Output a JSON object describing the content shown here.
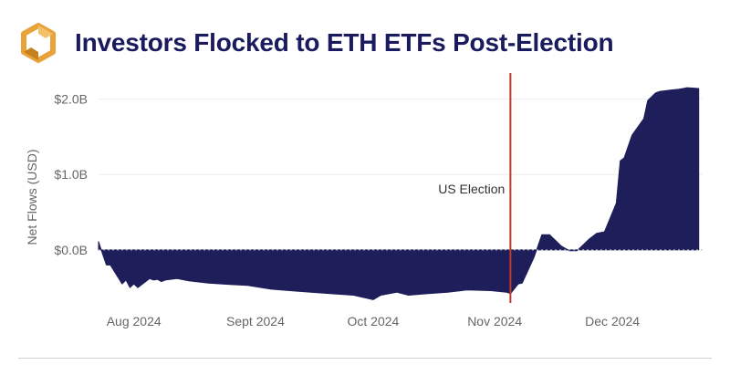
{
  "header": {
    "title": "Investors Flocked to ETH ETFs Post-Election",
    "logo_icon": "gold-hexagon-logo-icon",
    "title_color": "#1a1a5e"
  },
  "colors": {
    "area_fill": "#1e1e5a",
    "event_line": "#c0392b",
    "zero_line": "#bbbbbb",
    "grid": "#eeeeee",
    "tick_text": "#666666",
    "logo_gold": "#e8a23a"
  },
  "chart_data": {
    "type": "area",
    "title": "Investors Flocked to ETH ETFs Post-Election",
    "xlabel": "",
    "ylabel": "Net Flows  (USD)",
    "unit": "B USD",
    "xlim": [
      "2024-07-23",
      "2024-12-24"
    ],
    "ylim": [
      -0.8,
      2.2
    ],
    "y_ticks": [
      {
        "value": 0,
        "label": "$0.0B"
      },
      {
        "value": 1,
        "label": "$1.0B"
      },
      {
        "value": 2,
        "label": "$2.0B"
      }
    ],
    "x_ticks": [
      {
        "date": "2024-08-01",
        "label": "Aug 2024"
      },
      {
        "date": "2024-09-01",
        "label": "Sept 2024"
      },
      {
        "date": "2024-10-01",
        "label": "Oct 2024"
      },
      {
        "date": "2024-11-01",
        "label": "Nov 2024"
      },
      {
        "date": "2024-12-01",
        "label": "Dec 2024"
      }
    ],
    "grid": true,
    "legend": false,
    "annotations": [
      {
        "date": "2024-11-05",
        "label": "US Election",
        "type": "vertical-line"
      }
    ],
    "series": [
      {
        "x": [
          "2024-07-23",
          "2024-07-24",
          "2024-07-25",
          "2024-07-26",
          "2024-07-29",
          "2024-07-30",
          "2024-07-31",
          "2024-08-01",
          "2024-08-02",
          "2024-08-05",
          "2024-08-06",
          "2024-08-07",
          "2024-08-08",
          "2024-08-09",
          "2024-08-12",
          "2024-08-15",
          "2024-08-20",
          "2024-08-26",
          "2024-08-30",
          "2024-09-05",
          "2024-09-12",
          "2024-09-20",
          "2024-09-26",
          "2024-10-01",
          "2024-10-03",
          "2024-10-07",
          "2024-10-10",
          "2024-10-15",
          "2024-10-20",
          "2024-10-25",
          "2024-10-31",
          "2024-11-04",
          "2024-11-05",
          "2024-11-07",
          "2024-11-08",
          "2024-11-11",
          "2024-11-13",
          "2024-11-15",
          "2024-11-18",
          "2024-11-20",
          "2024-11-22",
          "2024-11-25",
          "2024-11-26",
          "2024-11-27",
          "2024-11-29",
          "2024-12-02",
          "2024-12-03",
          "2024-12-04",
          "2024-12-06",
          "2024-12-09",
          "2024-12-10",
          "2024-12-12",
          "2024-12-13",
          "2024-12-16",
          "2024-12-18",
          "2024-12-19",
          "2024-12-20",
          "2024-12-23"
        ],
        "values": [
          0.11,
          -0.05,
          -0.2,
          -0.2,
          -0.45,
          -0.4,
          -0.5,
          -0.45,
          -0.5,
          -0.38,
          -0.4,
          -0.39,
          -0.42,
          -0.4,
          -0.38,
          -0.41,
          -0.44,
          -0.46,
          -0.47,
          -0.52,
          -0.55,
          -0.58,
          -0.6,
          -0.66,
          -0.6,
          -0.56,
          -0.6,
          -0.58,
          -0.56,
          -0.53,
          -0.54,
          -0.56,
          -0.58,
          -0.45,
          -0.44,
          -0.1,
          0.2,
          0.2,
          0.05,
          -0.01,
          -0.01,
          0.14,
          0.18,
          0.22,
          0.24,
          0.62,
          1.18,
          1.22,
          1.52,
          1.74,
          1.98,
          2.08,
          2.1,
          2.12,
          2.13,
          2.14,
          2.15,
          2.14
        ]
      }
    ]
  }
}
